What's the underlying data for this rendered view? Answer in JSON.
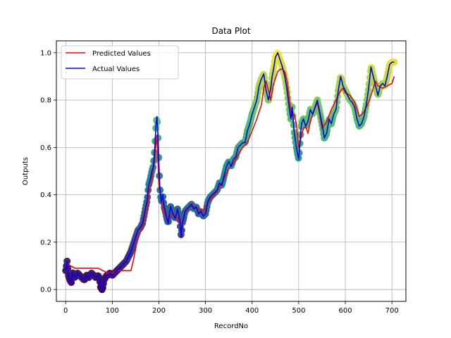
{
  "chart_data": {
    "type": "line",
    "title": "Data Plot",
    "xlabel": "RecordNo",
    "ylabel": "Outputs",
    "xlim": [
      -20,
      730
    ],
    "ylim": [
      -0.05,
      1.05
    ],
    "xticks": [
      0,
      100,
      200,
      300,
      400,
      500,
      600,
      700
    ],
    "yticks": [
      0.0,
      0.2,
      0.4,
      0.6,
      0.8,
      1.0
    ],
    "xtick_labels": [
      "0",
      "100",
      "200",
      "300",
      "400",
      "500",
      "600",
      "700"
    ],
    "ytick_labels": [
      "0.0",
      "0.2",
      "0.4",
      "0.6",
      "0.8",
      "1.0"
    ],
    "grid": true,
    "legend_position": "top-left",
    "scatter_colormap": "viridis (colored by output value)",
    "series": [
      {
        "name": "Predicted Values",
        "color": "#ff0000",
        "x": [
          0,
          5,
          10,
          20,
          30,
          40,
          50,
          60,
          70,
          80,
          90,
          100,
          110,
          120,
          130,
          140,
          145,
          150,
          155,
          160,
          165,
          170,
          175,
          180,
          185,
          190,
          193,
          196,
          200,
          205,
          210,
          215,
          220,
          230,
          240,
          248,
          255,
          265,
          275,
          285,
          295,
          300,
          310,
          320,
          330,
          340,
          350,
          360,
          370,
          380,
          390,
          400,
          410,
          420,
          425,
          430,
          435,
          440,
          445,
          450,
          455,
          460,
          465,
          470,
          475,
          480,
          485,
          490,
          495,
          500,
          505,
          510,
          515,
          520,
          525,
          530,
          540,
          545,
          550,
          560,
          570,
          580,
          590,
          595,
          600,
          610,
          620,
          630,
          640,
          650,
          660,
          665,
          670,
          680,
          690,
          700,
          705
        ],
        "y": [
          0.12,
          0.11,
          0.1,
          0.09,
          0.09,
          0.09,
          0.09,
          0.09,
          0.09,
          0.08,
          0.07,
          0.07,
          0.08,
          0.08,
          0.08,
          0.08,
          0.12,
          0.17,
          0.22,
          0.24,
          0.27,
          0.3,
          0.34,
          0.42,
          0.47,
          0.53,
          0.6,
          0.65,
          0.44,
          0.38,
          0.33,
          0.31,
          0.3,
          0.32,
          0.31,
          0.25,
          0.32,
          0.35,
          0.35,
          0.34,
          0.33,
          0.35,
          0.38,
          0.4,
          0.43,
          0.47,
          0.51,
          0.53,
          0.57,
          0.6,
          0.62,
          0.67,
          0.72,
          0.78,
          0.85,
          0.88,
          0.84,
          0.8,
          0.86,
          0.89,
          0.92,
          0.93,
          0.93,
          0.92,
          0.88,
          0.8,
          0.73,
          0.74,
          0.7,
          0.6,
          0.64,
          0.68,
          0.69,
          0.66,
          0.71,
          0.74,
          0.79,
          0.74,
          0.68,
          0.71,
          0.76,
          0.8,
          0.84,
          0.85,
          0.83,
          0.82,
          0.79,
          0.73,
          0.75,
          0.79,
          0.85,
          0.88,
          0.86,
          0.85,
          0.86,
          0.87,
          0.9
        ]
      },
      {
        "name": "Actual Values",
        "color": "#0000ff",
        "x": [
          0,
          3,
          6,
          9,
          12,
          15,
          20,
          25,
          30,
          35,
          40,
          45,
          50,
          55,
          60,
          65,
          70,
          73,
          75,
          78,
          80,
          82,
          85,
          88,
          90,
          95,
          100,
          105,
          110,
          115,
          120,
          125,
          130,
          135,
          140,
          145,
          150,
          155,
          160,
          165,
          170,
          175,
          178,
          182,
          185,
          188,
          191,
          194,
          196,
          198,
          200,
          202,
          205,
          208,
          211,
          214,
          217,
          220,
          225,
          230,
          235,
          240,
          245,
          248,
          250,
          253,
          256,
          260,
          265,
          270,
          275,
          280,
          285,
          290,
          295,
          300,
          305,
          310,
          315,
          320,
          325,
          330,
          335,
          340,
          345,
          350,
          355,
          360,
          365,
          370,
          375,
          380,
          385,
          390,
          395,
          400,
          405,
          410,
          415,
          420,
          425,
          430,
          435,
          440,
          443,
          446,
          450,
          455,
          460,
          465,
          470,
          475,
          480,
          483,
          486,
          490,
          495,
          500,
          503,
          506,
          510,
          515,
          520,
          525,
          530,
          535,
          540,
          545,
          550,
          555,
          560,
          565,
          570,
          575,
          580,
          585,
          590,
          595,
          600,
          605,
          610,
          615,
          620,
          625,
          630,
          635,
          640,
          645,
          650,
          655,
          660,
          665,
          670,
          675,
          680,
          685,
          690,
          695,
          700,
          705
        ],
        "y": [
          0.08,
          0.12,
          0.06,
          0.04,
          0.03,
          0.07,
          0.05,
          0.07,
          0.06,
          0.05,
          0.04,
          0.06,
          0.05,
          0.07,
          0.06,
          0.05,
          0.06,
          0.04,
          0.01,
          0.0,
          0.01,
          0.04,
          0.05,
          0.06,
          0.06,
          0.07,
          0.06,
          0.07,
          0.08,
          0.09,
          0.1,
          0.11,
          0.12,
          0.14,
          0.16,
          0.19,
          0.22,
          0.25,
          0.26,
          0.28,
          0.33,
          0.38,
          0.44,
          0.47,
          0.5,
          0.52,
          0.59,
          0.7,
          0.73,
          0.64,
          0.53,
          0.43,
          0.37,
          0.4,
          0.35,
          0.33,
          0.3,
          0.28,
          0.35,
          0.32,
          0.3,
          0.34,
          0.29,
          0.22,
          0.28,
          0.3,
          0.33,
          0.34,
          0.35,
          0.36,
          0.34,
          0.35,
          0.32,
          0.33,
          0.31,
          0.32,
          0.37,
          0.39,
          0.4,
          0.41,
          0.42,
          0.45,
          0.44,
          0.48,
          0.52,
          0.54,
          0.52,
          0.55,
          0.56,
          0.6,
          0.61,
          0.62,
          0.62,
          0.67,
          0.7,
          0.74,
          0.77,
          0.8,
          0.86,
          0.89,
          0.91,
          0.84,
          0.8,
          0.85,
          0.9,
          0.93,
          0.98,
          1.0,
          0.97,
          0.94,
          0.9,
          0.84,
          0.76,
          0.72,
          0.77,
          0.67,
          0.6,
          0.55,
          0.63,
          0.7,
          0.72,
          0.69,
          0.71,
          0.76,
          0.74,
          0.77,
          0.8,
          0.75,
          0.7,
          0.64,
          0.66,
          0.72,
          0.7,
          0.74,
          0.76,
          0.84,
          0.9,
          0.86,
          0.84,
          0.82,
          0.8,
          0.79,
          0.77,
          0.72,
          0.69,
          0.7,
          0.73,
          0.78,
          0.85,
          0.94,
          0.9,
          0.86,
          0.82,
          0.86,
          0.87,
          0.86,
          0.9,
          0.95,
          0.96,
          0.96
        ]
      }
    ]
  }
}
